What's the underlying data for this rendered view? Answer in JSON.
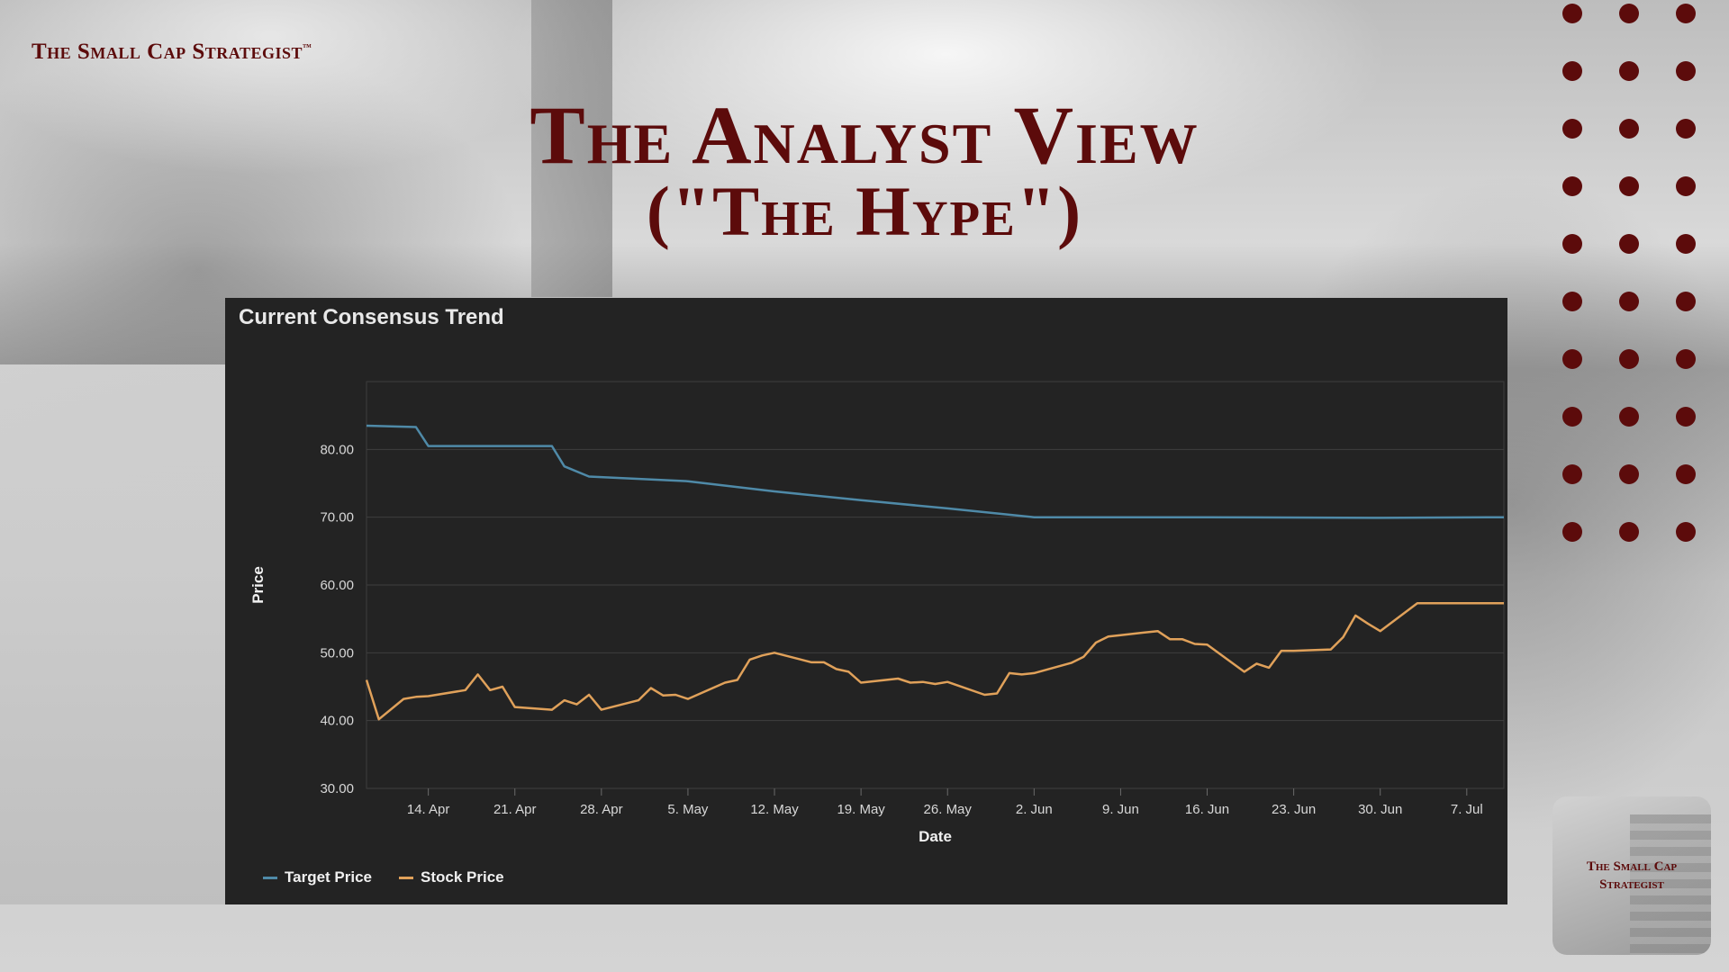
{
  "brand": {
    "name": "The Small Cap Strategist",
    "tm": "™"
  },
  "slide": {
    "title_line1": "The Analyst View",
    "title_line2": "(\"The Hype\")"
  },
  "logo": {
    "line1": "The Small Cap",
    "line2": "Strategist"
  },
  "colors": {
    "accent": "#5c0b0b",
    "target": "#4f8aa8",
    "stock": "#e0a15a",
    "panel": "#232323"
  },
  "chart_data": {
    "type": "line",
    "title": "Current Consensus Trend",
    "xlabel": "Date",
    "ylabel": "Price",
    "ylim": [
      30,
      90
    ],
    "yticks": [
      "30.00",
      "40.00",
      "50.00",
      "60.00",
      "70.00",
      "80.00"
    ],
    "xticks": [
      "14. Apr",
      "21. Apr",
      "28. Apr",
      "5. May",
      "12. May",
      "19. May",
      "26. May",
      "2. Jun",
      "9. Jun",
      "16. Jun",
      "23. Jun",
      "30. Jun",
      "7. Jul"
    ],
    "x_dates": [
      "2023-04-09",
      "2023-07-10"
    ],
    "legend": "bottom-left",
    "series": [
      {
        "name": "Target Price",
        "color": "#4f8aa8",
        "points": [
          [
            "2023-04-09",
            83.5
          ],
          [
            "2023-04-13",
            83.3
          ],
          [
            "2023-04-14",
            80.5
          ],
          [
            "2023-04-19",
            80.5
          ],
          [
            "2023-04-24",
            80.5
          ],
          [
            "2023-04-25",
            77.5
          ],
          [
            "2023-04-27",
            76.0
          ],
          [
            "2023-05-05",
            75.3
          ],
          [
            "2023-05-12",
            73.8
          ],
          [
            "2023-05-19",
            72.5
          ],
          [
            "2023-05-26",
            71.3
          ],
          [
            "2023-06-02",
            70.0
          ],
          [
            "2023-06-16",
            70.0
          ],
          [
            "2023-06-30",
            69.9
          ],
          [
            "2023-07-10",
            70.0
          ]
        ]
      },
      {
        "name": "Stock Price",
        "color": "#e0a15a",
        "points": [
          [
            "2023-04-09",
            46.0
          ],
          [
            "2023-04-10",
            40.2
          ],
          [
            "2023-04-12",
            43.2
          ],
          [
            "2023-04-13",
            43.5
          ],
          [
            "2023-04-14",
            43.6
          ],
          [
            "2023-04-17",
            44.5
          ],
          [
            "2023-04-18",
            46.8
          ],
          [
            "2023-04-19",
            44.5
          ],
          [
            "2023-04-20",
            45.0
          ],
          [
            "2023-04-21",
            42.0
          ],
          [
            "2023-04-24",
            41.6
          ],
          [
            "2023-04-25",
            43.0
          ],
          [
            "2023-04-26",
            42.4
          ],
          [
            "2023-04-27",
            43.8
          ],
          [
            "2023-04-28",
            41.6
          ],
          [
            "2023-05-01",
            43.0
          ],
          [
            "2023-05-02",
            44.8
          ],
          [
            "2023-05-03",
            43.7
          ],
          [
            "2023-05-04",
            43.8
          ],
          [
            "2023-05-05",
            43.2
          ],
          [
            "2023-05-08",
            45.6
          ],
          [
            "2023-05-09",
            46.0
          ],
          [
            "2023-05-10",
            49.0
          ],
          [
            "2023-05-11",
            49.6
          ],
          [
            "2023-05-12",
            50.0
          ],
          [
            "2023-05-15",
            48.6
          ],
          [
            "2023-05-16",
            48.6
          ],
          [
            "2023-05-17",
            47.6
          ],
          [
            "2023-05-18",
            47.2
          ],
          [
            "2023-05-19",
            45.6
          ],
          [
            "2023-05-22",
            46.2
          ],
          [
            "2023-05-23",
            45.6
          ],
          [
            "2023-05-24",
            45.7
          ],
          [
            "2023-05-25",
            45.4
          ],
          [
            "2023-05-26",
            45.7
          ],
          [
            "2023-05-29",
            43.8
          ],
          [
            "2023-05-30",
            44.0
          ],
          [
            "2023-05-31",
            47.0
          ],
          [
            "2023-06-01",
            46.8
          ],
          [
            "2023-06-02",
            47.0
          ],
          [
            "2023-06-05",
            48.5
          ],
          [
            "2023-06-06",
            49.4
          ],
          [
            "2023-06-07",
            51.5
          ],
          [
            "2023-06-08",
            52.4
          ],
          [
            "2023-06-09",
            52.6
          ],
          [
            "2023-06-12",
            53.2
          ],
          [
            "2023-06-13",
            52.0
          ],
          [
            "2023-06-14",
            52.0
          ],
          [
            "2023-06-15",
            51.3
          ],
          [
            "2023-06-16",
            51.2
          ],
          [
            "2023-06-19",
            47.2
          ],
          [
            "2023-06-20",
            48.4
          ],
          [
            "2023-06-21",
            47.8
          ],
          [
            "2023-06-22",
            50.3
          ],
          [
            "2023-06-23",
            50.3
          ],
          [
            "2023-06-26",
            50.5
          ],
          [
            "2023-06-27",
            52.3
          ],
          [
            "2023-06-28",
            55.5
          ],
          [
            "2023-06-29",
            54.3
          ],
          [
            "2023-06-30",
            53.2
          ],
          [
            "2023-07-03",
            57.3
          ],
          [
            "2023-07-10",
            57.3
          ]
        ]
      }
    ]
  }
}
